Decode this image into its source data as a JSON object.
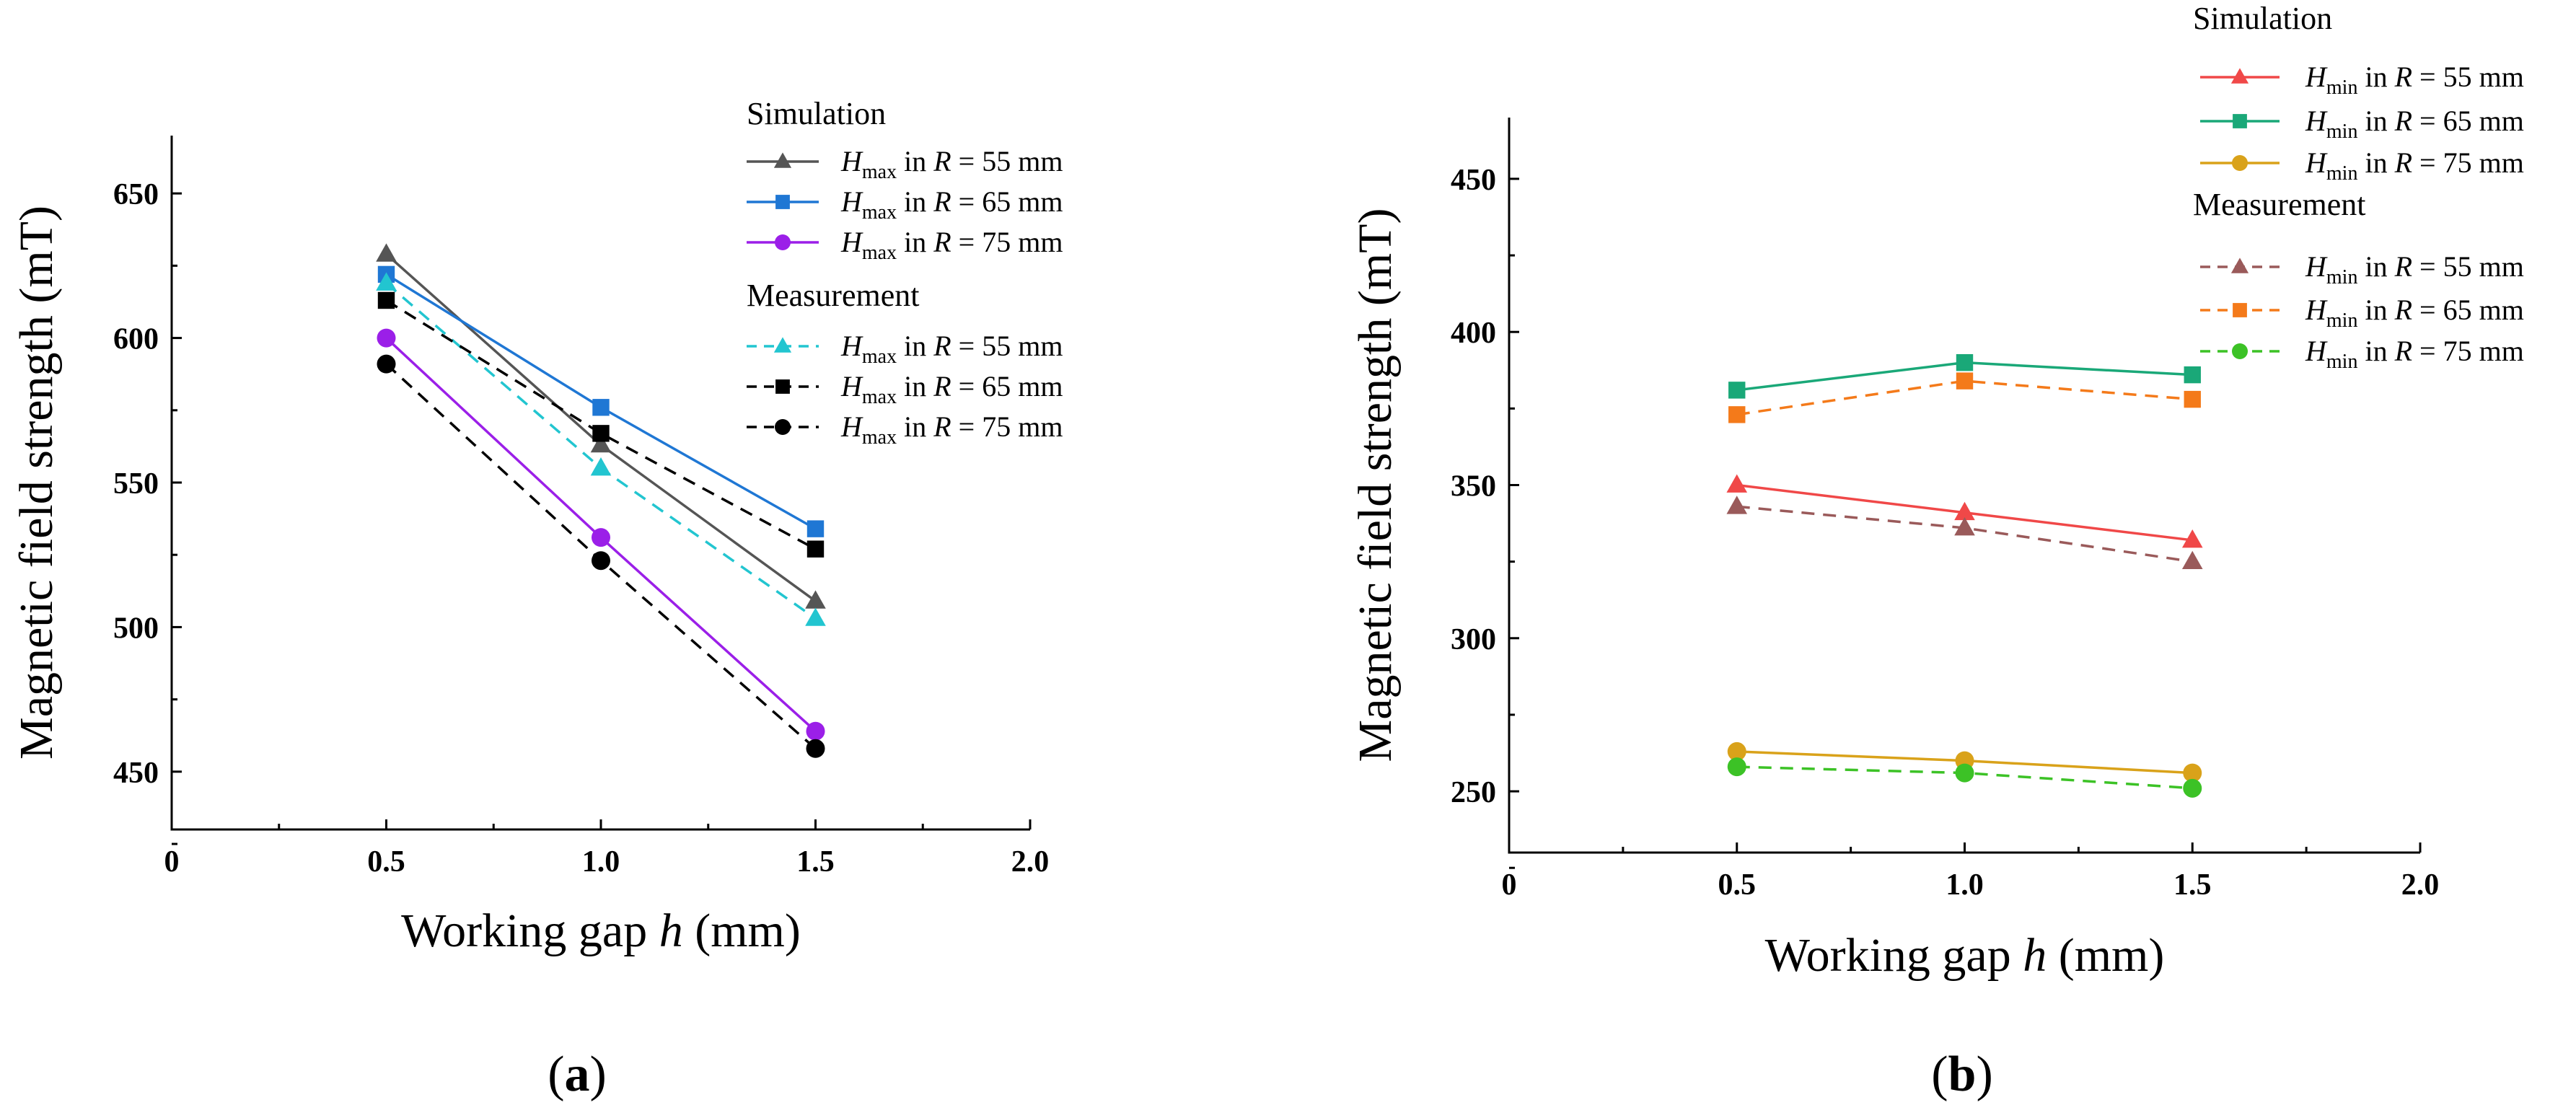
{
  "chart_data": [
    {
      "type": "line",
      "panel": "a",
      "panel_label": "a",
      "xlabel_main": "Working gap ",
      "xlabel_var": "h",
      "xlabel_unit": " (mm)",
      "ylabel": "Magnetic field strength (mT)",
      "xlim": [
        0,
        2.0
      ],
      "ylim": [
        430,
        670
      ],
      "xticks": [
        0,
        0.5,
        1.0,
        1.5,
        2.0
      ],
      "xtick_labels": [
        "0",
        "0.5",
        "1.0",
        "1.5",
        "2.0"
      ],
      "yticks": [
        450,
        500,
        550,
        600,
        650
      ],
      "ytick_labels": [
        "450",
        "500",
        "550",
        "600",
        "650"
      ],
      "legend_groups": [
        "Simulation",
        "Measurement"
      ],
      "series": [
        {
          "name": "Hmax in R = 55 mm",
          "sym": "H",
          "sub": "max",
          "rtext": " in ",
          "rvar": "R",
          "rval": " = 55 mm",
          "group": "Simulation",
          "color": "#555555",
          "marker": "triangle",
          "dash": "solid",
          "x": [
            0.5,
            1.0,
            1.5
          ],
          "values": [
            629,
            563,
            509
          ]
        },
        {
          "name": "Hmax in R = 65 mm",
          "sym": "H",
          "sub": "max",
          "rtext": " in ",
          "rvar": "R",
          "rval": " = 65 mm",
          "group": "Simulation",
          "color": "#1f77d4",
          "marker": "square",
          "dash": "solid",
          "x": [
            0.5,
            1.0,
            1.5
          ],
          "values": [
            622,
            576,
            534
          ]
        },
        {
          "name": "Hmax in R = 75 mm",
          "sym": "H",
          "sub": "max",
          "rtext": " in ",
          "rvar": "R",
          "rval": " = 75 mm",
          "group": "Simulation",
          "color": "#9b1fe8",
          "marker": "circle",
          "dash": "solid",
          "x": [
            0.5,
            1.0,
            1.5
          ],
          "values": [
            600,
            531,
            464
          ]
        },
        {
          "name": "Hmax in R = 55 mm",
          "sym": "H",
          "sub": "max",
          "rtext": " in ",
          "rvar": "R",
          "rval": " = 55 mm",
          "group": "Measurement",
          "color": "#22c5d0",
          "marker": "triangle",
          "dash": "dashed",
          "x": [
            0.5,
            1.0,
            1.5
          ],
          "values": [
            619,
            555,
            503
          ]
        },
        {
          "name": "Hmax in R = 65 mm",
          "sym": "H",
          "sub": "max",
          "rtext": " in ",
          "rvar": "R",
          "rval": " = 65 mm",
          "group": "Measurement",
          "color": "#000000",
          "marker": "square",
          "dash": "dashed",
          "x": [
            0.5,
            1.0,
            1.5
          ],
          "values": [
            613,
            567,
            527
          ]
        },
        {
          "name": "Hmax in R = 75 mm",
          "sym": "H",
          "sub": "max",
          "rtext": " in ",
          "rvar": "R",
          "rval": " = 75 mm",
          "group": "Measurement",
          "color": "#000000",
          "marker": "circle",
          "dash": "dashed",
          "x": [
            0.5,
            1.0,
            1.5
          ],
          "values": [
            591,
            523,
            458
          ]
        }
      ]
    },
    {
      "type": "line",
      "panel": "b",
      "panel_label": "b",
      "xlabel_main": "Working gap ",
      "xlabel_var": "h",
      "xlabel_unit": " (mm)",
      "ylabel": "Magnetic field strength (mT)",
      "xlim": [
        0,
        2.0
      ],
      "ylim": [
        230,
        470
      ],
      "xticks": [
        0,
        0.5,
        1.0,
        1.5,
        2.0
      ],
      "xtick_labels": [
        "0",
        "0.5",
        "1.0",
        "1.5",
        "2.0"
      ],
      "yticks": [
        250,
        300,
        350,
        400,
        450
      ],
      "ytick_labels": [
        "250",
        "300",
        "350",
        "400",
        "450"
      ],
      "legend_groups": [
        "Simulation",
        "Measurement"
      ],
      "series": [
        {
          "name": "Hmin in R = 55 mm",
          "sym": "H",
          "sub": "min",
          "rtext": " in ",
          "rvar": "R",
          "rval": " = 55 mm",
          "group": "Simulation",
          "color": "#f04848",
          "marker": "triangle",
          "dash": "solid",
          "x": [
            0.5,
            1.0,
            1.5
          ],
          "values": [
            350,
            341,
            332
          ]
        },
        {
          "name": "Hmin in R = 65 mm",
          "sym": "H",
          "sub": "min",
          "rtext": " in ",
          "rvar": "R",
          "rval": " = 65 mm",
          "group": "Simulation",
          "color": "#1aa878",
          "marker": "square",
          "dash": "solid",
          "x": [
            0.5,
            1.0,
            1.5
          ],
          "values": [
            381,
            390,
            386
          ]
        },
        {
          "name": "Hmin in R = 75 mm",
          "sym": "H",
          "sub": "min",
          "rtext": " in ",
          "rvar": "R",
          "rval": " = 75 mm",
          "group": "Simulation",
          "color": "#d9a21a",
          "marker": "circle",
          "dash": "solid",
          "x": [
            0.5,
            1.0,
            1.5
          ],
          "values": [
            263,
            260,
            256
          ]
        },
        {
          "name": "Hmin in R = 55 mm",
          "sym": "H",
          "sub": "min",
          "rtext": " in ",
          "rvar": "R",
          "rval": " = 55 mm",
          "group": "Measurement",
          "color": "#9a5a5a",
          "marker": "triangle",
          "dash": "dashed",
          "x": [
            0.5,
            1.0,
            1.5
          ],
          "values": [
            343,
            336,
            325
          ]
        },
        {
          "name": "Hmin in R = 65 mm",
          "sym": "H",
          "sub": "min",
          "rtext": " in ",
          "rvar": "R",
          "rval": " = 65 mm",
          "group": "Measurement",
          "color": "#f47a1a",
          "marker": "square",
          "dash": "dashed",
          "x": [
            0.5,
            1.0,
            1.5
          ],
          "values": [
            373,
            384,
            378
          ]
        },
        {
          "name": "Hmin in R = 75 mm",
          "sym": "H",
          "sub": "min",
          "rtext": " in ",
          "rvar": "R",
          "rval": " = 75 mm",
          "group": "Measurement",
          "color": "#3cc226",
          "marker": "circle",
          "dash": "dashed",
          "x": [
            0.5,
            1.0,
            1.5
          ],
          "values": [
            258,
            256,
            251
          ]
        }
      ]
    }
  ]
}
